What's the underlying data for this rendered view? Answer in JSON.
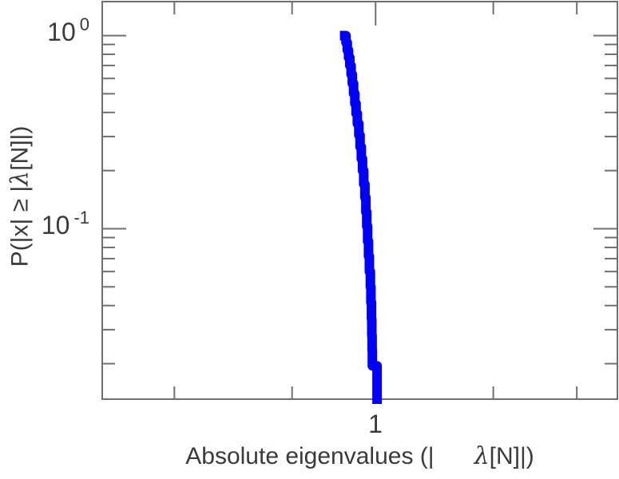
{
  "colors": {
    "curve": "#0000ff",
    "axis": "#6f6f6f",
    "text": "#3a3a3a",
    "background": "#ffffff"
  },
  "chart_data": {
    "type": "line",
    "subtype": "ccdf-step",
    "title": "",
    "xlabel_prefix": "Absolute eigenvalues (|      ",
    "xlabel_lambda": "λ",
    "xlabel_suffix": "[N]|)",
    "ylabel_prefix": "P(|x| ≥ |",
    "ylabel_lambda": "λ",
    "ylabel_suffix": "[N]|)",
    "x_scale": "log",
    "y_scale": "log",
    "xlim": [
      0.39,
      2.3
    ],
    "ylim": [
      0.0131,
      1.5
    ],
    "grid": false,
    "legend": false,
    "x_major_ticks": [
      1
    ],
    "x_major_tick_labels": [
      "1"
    ],
    "x_minor_ticks": [
      0.5,
      0.75,
      1.5,
      2
    ],
    "y_major_ticks": [
      1,
      0.1
    ],
    "y_major_tick_labels": [
      {
        "base": "10",
        "exp": "0"
      },
      {
        "base": "10",
        "exp": "-1"
      }
    ],
    "y_minor_ticks": [
      0.9,
      0.8,
      0.7,
      0.6,
      0.5,
      0.4,
      0.3,
      0.2,
      0.09,
      0.08,
      0.07,
      0.06,
      0.05,
      0.04,
      0.03,
      0.02
    ],
    "series": [
      {
        "name": "P(|x| >= |lambda[N]|)",
        "color": "#0000ff",
        "points": [
          [
            0.899,
            1.0
          ],
          [
            0.903,
            0.92
          ],
          [
            0.907,
            0.84
          ],
          [
            0.911,
            0.77
          ],
          [
            0.915,
            0.7
          ],
          [
            0.919,
            0.63
          ],
          [
            0.923,
            0.565
          ],
          [
            0.927,
            0.5
          ],
          [
            0.931,
            0.445
          ],
          [
            0.935,
            0.395
          ],
          [
            0.939,
            0.35
          ],
          [
            0.944,
            0.305
          ],
          [
            0.948,
            0.265
          ],
          [
            0.952,
            0.23
          ],
          [
            0.956,
            0.2
          ],
          [
            0.96,
            0.17
          ],
          [
            0.964,
            0.145
          ],
          [
            0.967,
            0.122
          ],
          [
            0.97,
            0.103
          ],
          [
            0.973,
            0.086
          ],
          [
            0.976,
            0.072
          ],
          [
            0.979,
            0.06
          ],
          [
            0.982,
            0.05
          ],
          [
            0.984,
            0.0415
          ],
          [
            0.986,
            0.034
          ],
          [
            0.987,
            0.028
          ],
          [
            0.988,
            0.0235
          ],
          [
            0.989,
            0.0195
          ],
          [
            1.005,
            0.016
          ],
          [
            1.005,
            0.0131
          ]
        ]
      }
    ]
  }
}
